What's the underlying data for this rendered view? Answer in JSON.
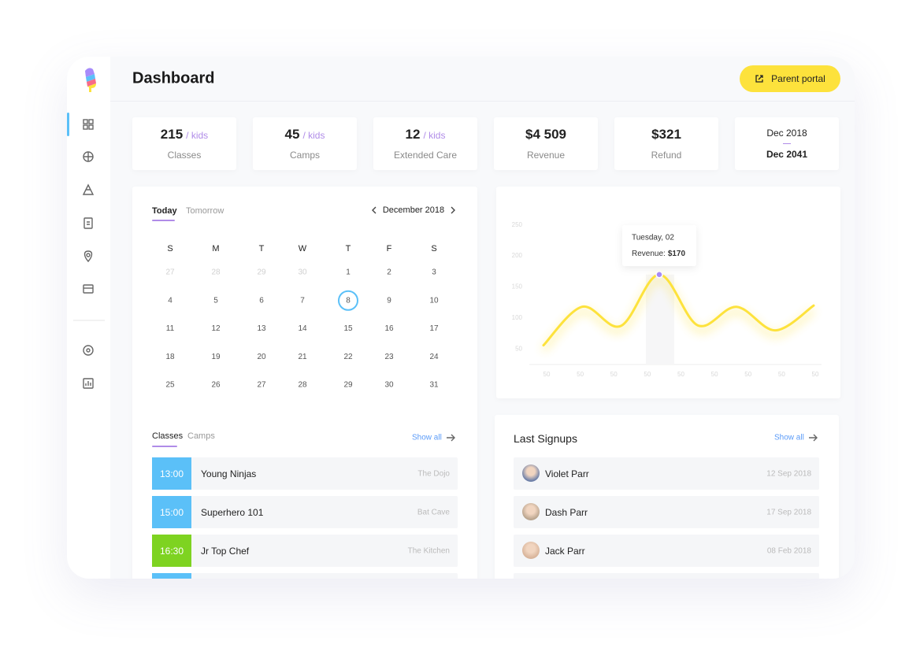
{
  "header": {
    "title": "Dashboard",
    "button": "Parent portal"
  },
  "stats": [
    {
      "value": "215",
      "unit": "/ kids",
      "label": "Classes"
    },
    {
      "value": "45",
      "unit": "/ kids",
      "label": "Camps"
    },
    {
      "value": "12",
      "unit": "/ kids",
      "label": "Extended Care"
    },
    {
      "value": "$4 509",
      "label": "Revenue"
    },
    {
      "value": "$321",
      "label": "Refund"
    }
  ],
  "date_range": {
    "from": "Dec 2018",
    "to": "Dec 2041"
  },
  "calendar": {
    "tabs": [
      "Today",
      "Tomorrow"
    ],
    "month": "December 2018",
    "weekdays": [
      "S",
      "M",
      "T",
      "W",
      "T",
      "F",
      "S"
    ],
    "leading_days": [
      27,
      28,
      29,
      30
    ],
    "days": [
      1,
      2,
      3,
      4,
      5,
      6,
      7,
      8,
      9,
      10,
      11,
      12,
      13,
      14,
      15,
      16,
      17,
      18,
      19,
      20,
      21,
      22,
      23,
      24,
      25,
      26,
      27,
      28,
      29,
      30,
      31
    ],
    "today": 8
  },
  "classes": {
    "tabs": [
      "Classes",
      "Camps"
    ],
    "show_all": "Show all",
    "items": [
      {
        "time": "13:00",
        "name": "Young Ninjas",
        "place": "The Dojo",
        "color": "#5bc0f8"
      },
      {
        "time": "15:00",
        "name": "Superhero 101",
        "place": "Bat Cave",
        "color": "#5bc0f8"
      },
      {
        "time": "16:30",
        "name": "Jr Top Chef",
        "place": "The Kitchen",
        "color": "#7ed321"
      }
    ]
  },
  "chart": {
    "type": "line",
    "color": "#fde23c",
    "ylim": [
      25,
      275
    ],
    "yticks": [
      50,
      100,
      150,
      200,
      250
    ],
    "x_labels": [
      "50",
      "50",
      "50",
      "50",
      "50",
      "50",
      "50",
      "50",
      "50"
    ],
    "values": [
      56,
      118,
      87,
      170,
      88,
      118,
      80,
      120
    ],
    "highlight": 3,
    "tooltip": {
      "title": "Tuesday, 02",
      "label": "Revenue:",
      "value": "$170"
    }
  },
  "signups": {
    "title": "Last Signups",
    "show_all": "Show all",
    "items": [
      {
        "name": "Violet Parr",
        "date": "12 Sep 2018"
      },
      {
        "name": "Dash Parr",
        "date": "17 Sep 2018"
      },
      {
        "name": "Jack Parr",
        "date": "08 Feb 2018"
      }
    ]
  }
}
